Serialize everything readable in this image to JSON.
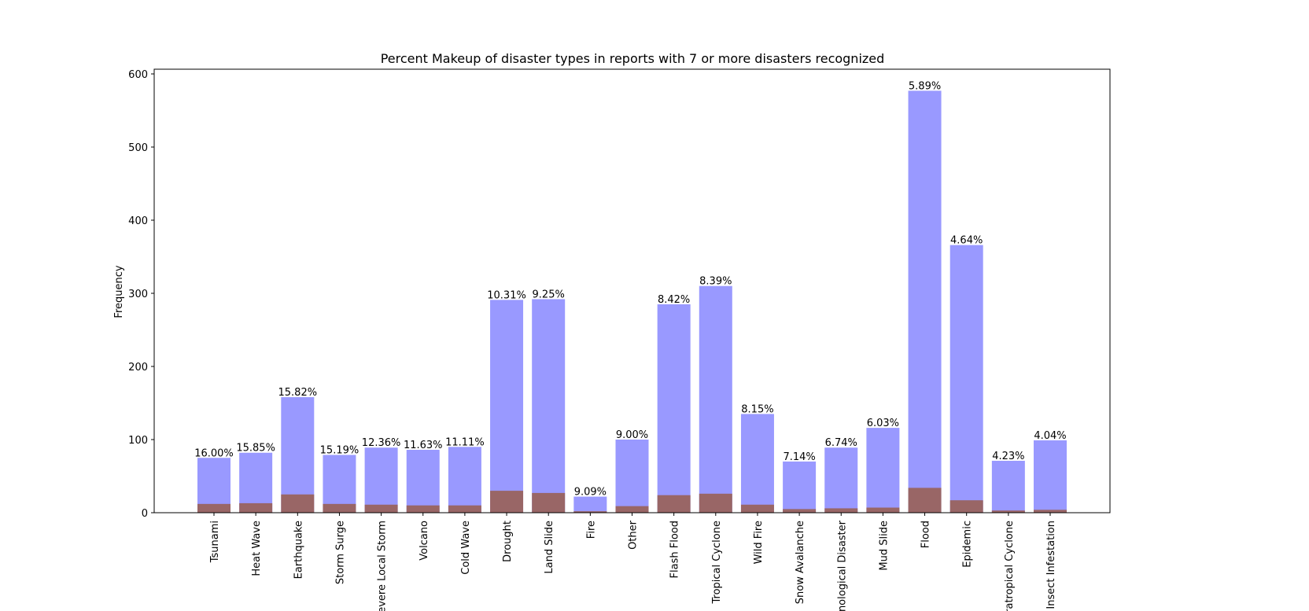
{
  "chart_data": {
    "type": "bar",
    "title": "Percent Makeup of disaster types in reports with 7 or more disasters recognized",
    "y_label": "Frequency",
    "categories": [
      "Tsunami",
      "Heat Wave",
      "Earthquake",
      "Storm Surge",
      "Severe Local Storm",
      "Volcano",
      "Cold Wave",
      "Drought",
      "Land Slide",
      "Fire",
      "Other",
      "Flash Flood",
      "Tropical Cyclone",
      "Wild Fire",
      "Snow Avalanche",
      "Technological Disaster",
      "Mud Slide",
      "Flood",
      "Epidemic",
      "Extratropical Cyclone",
      "Insect Infestation"
    ],
    "series": [
      {
        "color": "#9999ff",
        "values": [
          75,
          82,
          158,
          79,
          89,
          86,
          90,
          291,
          292,
          22,
          100,
          285,
          310,
          135,
          70,
          89,
          116,
          577,
          366,
          71,
          99
        ]
      },
      {
        "color": "#996666",
        "values": [
          12,
          13,
          25,
          12,
          11,
          10,
          10,
          30,
          27,
          2,
          9,
          24,
          26,
          11,
          5,
          6,
          7,
          34,
          17,
          3,
          4
        ]
      }
    ],
    "percentages": {
      "values": [
        16.0,
        15.85,
        15.82,
        15.19,
        12.36,
        11.63,
        11.11,
        10.31,
        9.25,
        9.09,
        9.0,
        8.42,
        8.39,
        8.15,
        7.14,
        6.74,
        6.03,
        5.89,
        4.64,
        4.23,
        4.04
      ],
      "value_labels": [
        "16.00%",
        "15.85%",
        "15.82%",
        "15.19%",
        "12.36%",
        "11.63%",
        "11.11%",
        "10.31%",
        "9.25%",
        "9.09%",
        "9.00%",
        "8.42%",
        "8.39%",
        "8.15%",
        "7.14%",
        "6.74%",
        "6.03%",
        "5.89%",
        "4.64%",
        "4.23%",
        "4.04%"
      ]
    },
    "ylim": [
      0,
      600
    ],
    "yticks": [
      0,
      100,
      200,
      300,
      400,
      500,
      600
    ]
  }
}
